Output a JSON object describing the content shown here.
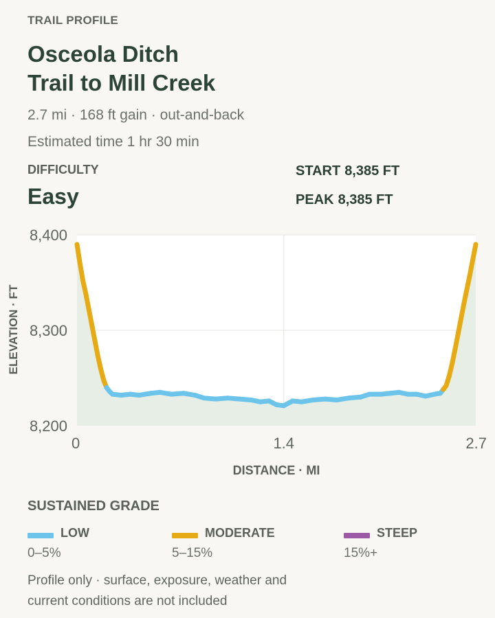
{
  "header": {
    "eyebrow": "TRAIL PROFILE",
    "title_line1": "Osceola Ditch",
    "title_line2": "Trail to Mill Creek",
    "meta_line1": "2.7 mi · 168 ft gain · out-and-back",
    "meta_line2": "Estimated time 1 hr 30 min"
  },
  "difficulty": {
    "label": "DIFFICULTY",
    "value": "Easy"
  },
  "stats": {
    "start_label": "START",
    "start_value": "8,385 FT",
    "peak_label": "PEAK",
    "peak_value": "8,385 FT"
  },
  "chart_data": {
    "type": "area",
    "xlabel": "DISTANCE · MI",
    "ylabel": "ELEVATION · FT",
    "xlim": [
      0,
      2.7
    ],
    "ylim": [
      8200,
      8400
    ],
    "x_ticks": [
      0,
      1.4,
      2.7
    ],
    "x_tick_labels": [
      "0",
      "1.4",
      "2.7"
    ],
    "y_ticks": [
      8200,
      8300,
      8400
    ],
    "y_tick_labels": [
      "8,200",
      "8,300",
      "8,400"
    ],
    "grid": true,
    "colors": {
      "low": "#6cc4ea",
      "moderate": "#e5aa14",
      "steep": "#9b59a6",
      "fill": "#e7eee6",
      "grid": "#e3e3e0"
    },
    "points": [
      {
        "x": 0.0,
        "y": 8390,
        "grade": "moderate"
      },
      {
        "x": 0.02,
        "y": 8370,
        "grade": "moderate"
      },
      {
        "x": 0.04,
        "y": 8352,
        "grade": "moderate"
      },
      {
        "x": 0.06,
        "y": 8338,
        "grade": "moderate"
      },
      {
        "x": 0.08,
        "y": 8322,
        "grade": "moderate"
      },
      {
        "x": 0.1,
        "y": 8306,
        "grade": "moderate"
      },
      {
        "x": 0.12,
        "y": 8290,
        "grade": "moderate"
      },
      {
        "x": 0.14,
        "y": 8274,
        "grade": "moderate"
      },
      {
        "x": 0.16,
        "y": 8260,
        "grade": "moderate"
      },
      {
        "x": 0.18,
        "y": 8248,
        "grade": "moderate"
      },
      {
        "x": 0.2,
        "y": 8240,
        "grade": "moderate"
      },
      {
        "x": 0.22,
        "y": 8236,
        "grade": "low"
      },
      {
        "x": 0.24,
        "y": 8233,
        "grade": "low"
      },
      {
        "x": 0.3,
        "y": 8232,
        "grade": "low"
      },
      {
        "x": 0.36,
        "y": 8233,
        "grade": "low"
      },
      {
        "x": 0.42,
        "y": 8232,
        "grade": "low"
      },
      {
        "x": 0.5,
        "y": 8234,
        "grade": "low"
      },
      {
        "x": 0.56,
        "y": 8235,
        "grade": "low"
      },
      {
        "x": 0.64,
        "y": 8233,
        "grade": "low"
      },
      {
        "x": 0.72,
        "y": 8234,
        "grade": "low"
      },
      {
        "x": 0.8,
        "y": 8232,
        "grade": "low"
      },
      {
        "x": 0.86,
        "y": 8229,
        "grade": "low"
      },
      {
        "x": 0.94,
        "y": 8228,
        "grade": "low"
      },
      {
        "x": 1.02,
        "y": 8229,
        "grade": "low"
      },
      {
        "x": 1.1,
        "y": 8228,
        "grade": "low"
      },
      {
        "x": 1.18,
        "y": 8227,
        "grade": "low"
      },
      {
        "x": 1.24,
        "y": 8225,
        "grade": "low"
      },
      {
        "x": 1.3,
        "y": 8226,
        "grade": "low"
      },
      {
        "x": 1.35,
        "y": 8222,
        "grade": "low"
      },
      {
        "x": 1.4,
        "y": 8221,
        "grade": "low"
      },
      {
        "x": 1.46,
        "y": 8226,
        "grade": "low"
      },
      {
        "x": 1.52,
        "y": 8225,
        "grade": "low"
      },
      {
        "x": 1.6,
        "y": 8227,
        "grade": "low"
      },
      {
        "x": 1.68,
        "y": 8228,
        "grade": "low"
      },
      {
        "x": 1.76,
        "y": 8227,
        "grade": "low"
      },
      {
        "x": 1.84,
        "y": 8229,
        "grade": "low"
      },
      {
        "x": 1.92,
        "y": 8230,
        "grade": "low"
      },
      {
        "x": 1.98,
        "y": 8233,
        "grade": "low"
      },
      {
        "x": 2.06,
        "y": 8233,
        "grade": "low"
      },
      {
        "x": 2.12,
        "y": 8234,
        "grade": "low"
      },
      {
        "x": 2.18,
        "y": 8235,
        "grade": "low"
      },
      {
        "x": 2.24,
        "y": 8233,
        "grade": "low"
      },
      {
        "x": 2.3,
        "y": 8233,
        "grade": "low"
      },
      {
        "x": 2.36,
        "y": 8231,
        "grade": "low"
      },
      {
        "x": 2.42,
        "y": 8233,
        "grade": "low"
      },
      {
        "x": 2.46,
        "y": 8234,
        "grade": "low"
      },
      {
        "x": 2.48,
        "y": 8238,
        "grade": "low"
      },
      {
        "x": 2.5,
        "y": 8242,
        "grade": "moderate"
      },
      {
        "x": 2.52,
        "y": 8252,
        "grade": "moderate"
      },
      {
        "x": 2.54,
        "y": 8265,
        "grade": "moderate"
      },
      {
        "x": 2.56,
        "y": 8280,
        "grade": "moderate"
      },
      {
        "x": 2.58,
        "y": 8296,
        "grade": "moderate"
      },
      {
        "x": 2.6,
        "y": 8312,
        "grade": "moderate"
      },
      {
        "x": 2.62,
        "y": 8328,
        "grade": "moderate"
      },
      {
        "x": 2.64,
        "y": 8343,
        "grade": "moderate"
      },
      {
        "x": 2.66,
        "y": 8358,
        "grade": "moderate"
      },
      {
        "x": 2.68,
        "y": 8374,
        "grade": "moderate"
      },
      {
        "x": 2.7,
        "y": 8390,
        "grade": "moderate"
      }
    ]
  },
  "legend": {
    "title": "SUSTAINED GRADE",
    "items": [
      {
        "name": "LOW",
        "range": "0–5%",
        "color": "#6cc4ea"
      },
      {
        "name": "MODERATE",
        "range": "5–15%",
        "color": "#e5aa14"
      },
      {
        "name": "STEEP",
        "range": "15%+",
        "color": "#9b59a6"
      }
    ]
  },
  "note": {
    "line1": "Profile only · surface, exposure, weather and",
    "line2": "current conditions are not included"
  }
}
